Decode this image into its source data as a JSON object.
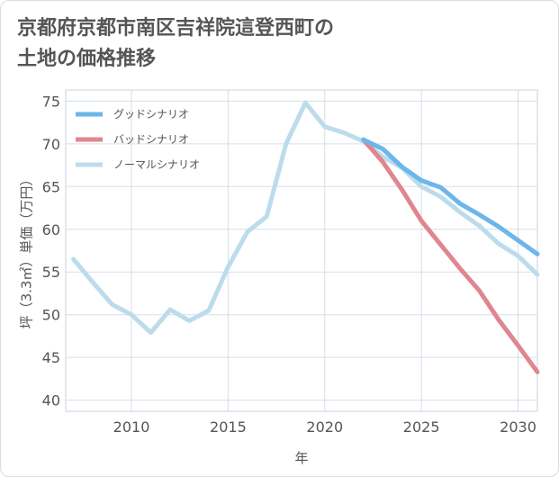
{
  "title_line1": "京都府京都市南区吉祥院這登西町の",
  "title_line2": "土地の価格推移",
  "chart_data": {
    "type": "line",
    "xlabel": "年",
    "ylabel": "坪（3.3㎡）単価（万円）",
    "xlim": [
      2006.6,
      2031
    ],
    "ylim": [
      38.7,
      76.3
    ],
    "xticks": [
      2010,
      2015,
      2020,
      2025,
      2030
    ],
    "yticks": [
      40,
      45,
      50,
      55,
      60,
      65,
      70,
      75
    ],
    "grid": true,
    "legend_position": "top-left",
    "series": [
      {
        "name": "グッドシナリオ",
        "color": "#6cb6ea",
        "x": [
          2022,
          2023,
          2024,
          2025,
          2026,
          2027,
          2028,
          2029,
          2030,
          2031
        ],
        "y": [
          70.5,
          69.4,
          67.3,
          65.7,
          64.9,
          63.0,
          61.7,
          60.3,
          58.7,
          57.1
        ]
      },
      {
        "name": "バッドシナリオ",
        "color": "#e0868f",
        "x": [
          2022,
          2023,
          2024,
          2025,
          2026,
          2027,
          2028,
          2029,
          2030,
          2031
        ],
        "y": [
          70.5,
          67.9,
          64.6,
          61.0,
          58.2,
          55.4,
          52.8,
          49.4,
          46.4,
          43.3
        ]
      },
      {
        "name": "ノーマルシナリオ",
        "color": "#bcdcec",
        "x": [
          2007,
          2008,
          2009,
          2010,
          2011,
          2012,
          2013,
          2014,
          2015,
          2016,
          2017,
          2018,
          2019,
          2020,
          2021,
          2022,
          2023,
          2024,
          2025,
          2026,
          2027,
          2028,
          2029,
          2030,
          2031
        ],
        "y": [
          56.5,
          53.8,
          51.2,
          50.0,
          47.9,
          50.6,
          49.3,
          50.5,
          55.6,
          59.7,
          61.5,
          70.0,
          74.8,
          72.0,
          71.3,
          70.3,
          68.5,
          67.2,
          65.0,
          63.8,
          62.0,
          60.4,
          58.3,
          56.9,
          54.7
        ]
      }
    ]
  }
}
